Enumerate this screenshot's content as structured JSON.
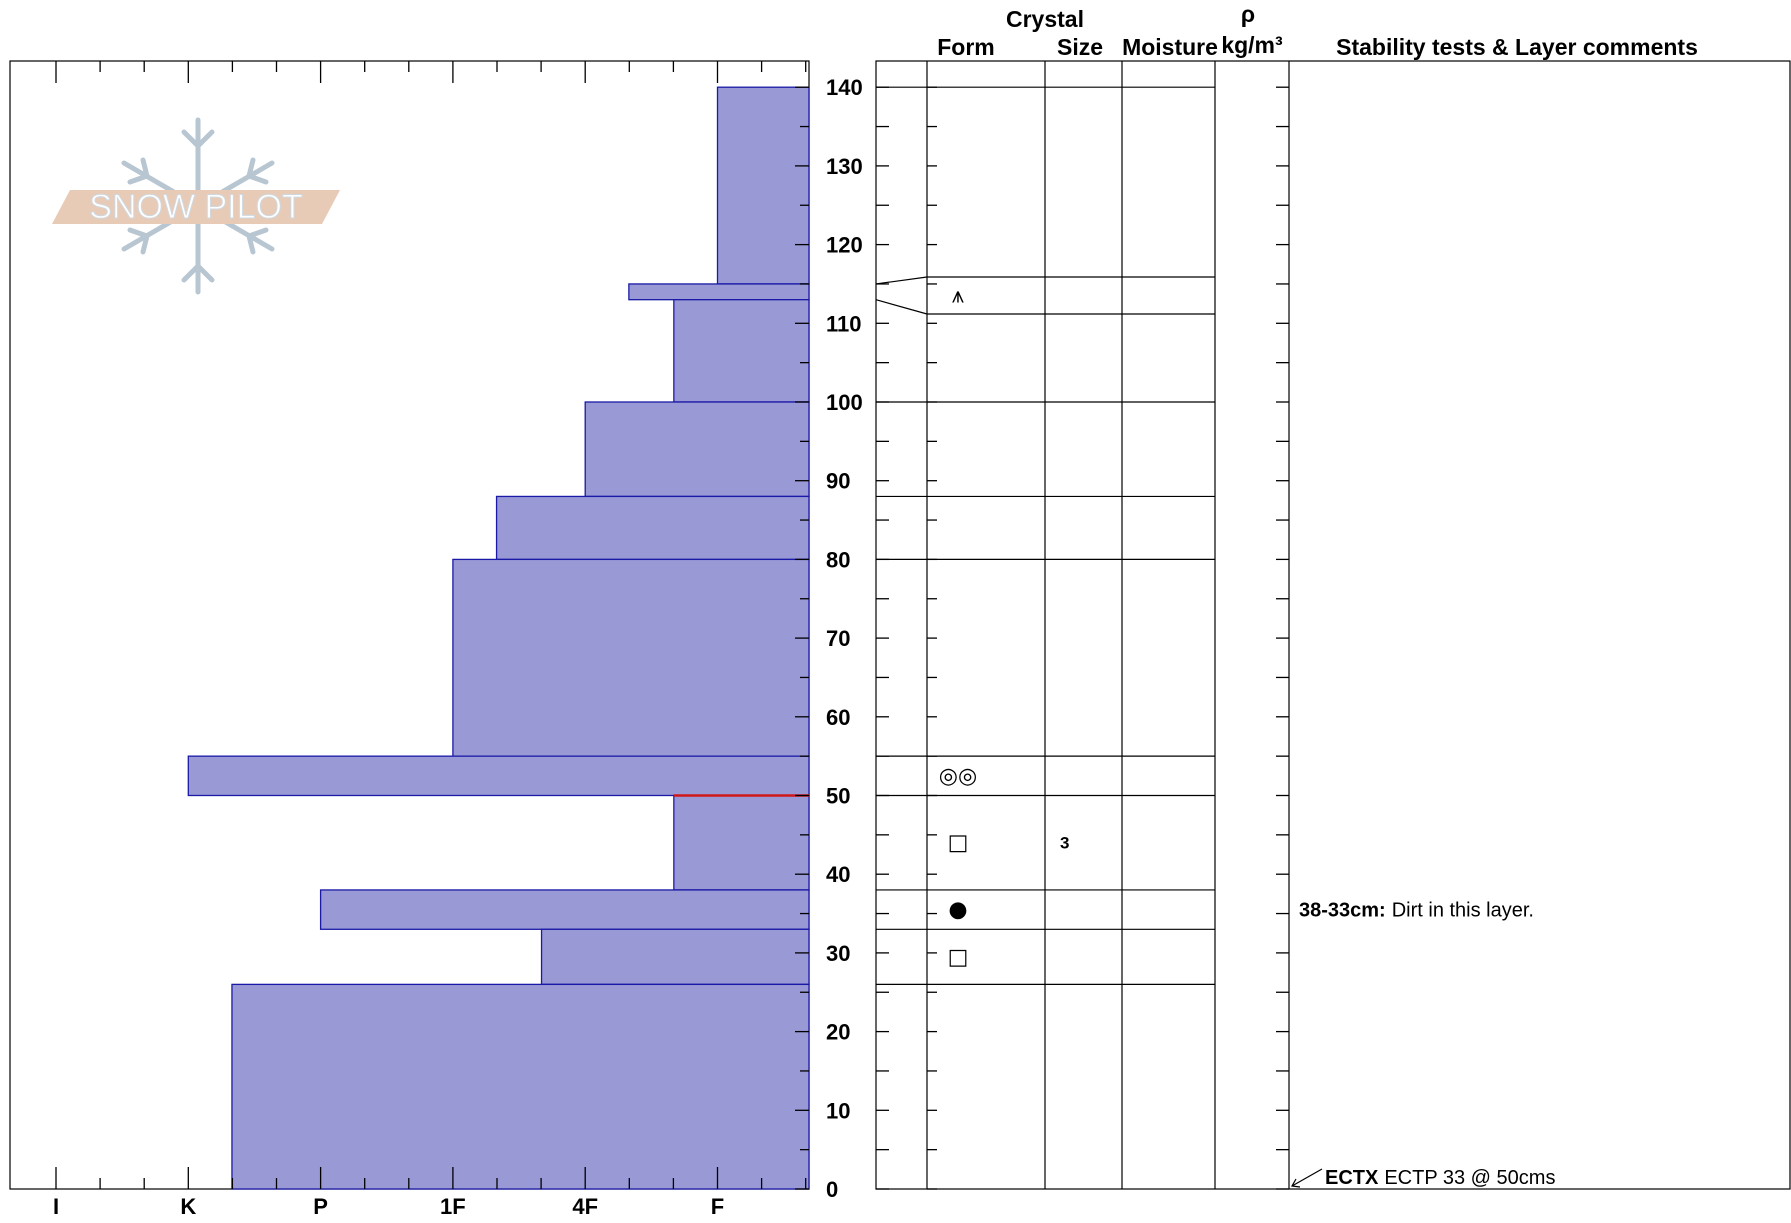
{
  "header": {
    "crystal": "Crystal",
    "form": "Form",
    "size": "Size",
    "moisture": "Moisture",
    "rho": "ρ",
    "density_unit": "kg/m³",
    "comments": "Stability tests & Layer comments"
  },
  "hardness_axis": [
    "I",
    "K",
    "P",
    "1F",
    "4F",
    "F"
  ],
  "depth_axis": [
    0,
    10,
    20,
    30,
    40,
    50,
    60,
    70,
    80,
    90,
    100,
    110,
    120,
    130,
    140
  ],
  "watermark": {
    "text": "SNOW PILOT"
  },
  "colors": {
    "hardness_fill": "#9999d6",
    "hardness_stroke": "#1a1aa6",
    "failure_line": "#d01818"
  },
  "chart_data": {
    "type": "bar",
    "orientation": "horizontal-step",
    "title": "",
    "xlabel": "",
    "ylabel": "",
    "ylim": [
      0,
      142
    ],
    "x_categories": [
      "I",
      "K",
      "P",
      "1F",
      "4F",
      "F"
    ],
    "hardness_scale_note": "x value is index on hardness scale: I=0, K=1, P=2, 1F=3, 4F=4, F=5",
    "layers": [
      {
        "bottom": 115,
        "top": 140,
        "hardness": 5.0
      },
      {
        "bottom": 113,
        "top": 115,
        "hardness": 4.33
      },
      {
        "bottom": 100,
        "top": 113,
        "hardness": 4.67
      },
      {
        "bottom": 88,
        "top": 100,
        "hardness": 4.0
      },
      {
        "bottom": 80,
        "top": 88,
        "hardness": 3.33
      },
      {
        "bottom": 55,
        "top": 80,
        "hardness": 3.0
      },
      {
        "bottom": 50,
        "top": 55,
        "hardness": 1.0
      },
      {
        "bottom": 38,
        "top": 50,
        "hardness": 4.67
      },
      {
        "bottom": 33,
        "top": 38,
        "hardness": 2.0
      },
      {
        "bottom": 26,
        "top": 33,
        "hardness": 3.67
      },
      {
        "bottom": 0,
        "top": 26,
        "hardness": 1.33
      }
    ],
    "failure_depth": 50
  },
  "grid_layers": [
    {
      "bottom": 115,
      "top": 140,
      "form": "",
      "size": ""
    },
    {
      "bottom": 113,
      "top": 115,
      "form": "⩚",
      "size": ""
    },
    {
      "bottom": 100,
      "top": 113,
      "form": "",
      "size": ""
    },
    {
      "bottom": 88,
      "top": 100,
      "form": "",
      "size": ""
    },
    {
      "bottom": 80,
      "top": 88,
      "form": "",
      "size": ""
    },
    {
      "bottom": 55,
      "top": 80,
      "form": "",
      "size": ""
    },
    {
      "bottom": 50,
      "top": 55,
      "form": "◎◎",
      "size": ""
    },
    {
      "bottom": 38,
      "top": 50,
      "form": "□",
      "size": "3"
    },
    {
      "bottom": 33,
      "top": 38,
      "form": "●",
      "size": ""
    },
    {
      "bottom": 26,
      "top": 33,
      "form": "□",
      "size": ""
    },
    {
      "bottom": 0,
      "top": 26,
      "form": "",
      "size": ""
    }
  ],
  "comments": [
    {
      "depth": 35.5,
      "label": "38-33cm:",
      "text": "Dirt in this layer."
    },
    {
      "depth": 1.5,
      "label": "ECTX",
      "text": "ECTP 33 @ 50cms"
    }
  ]
}
